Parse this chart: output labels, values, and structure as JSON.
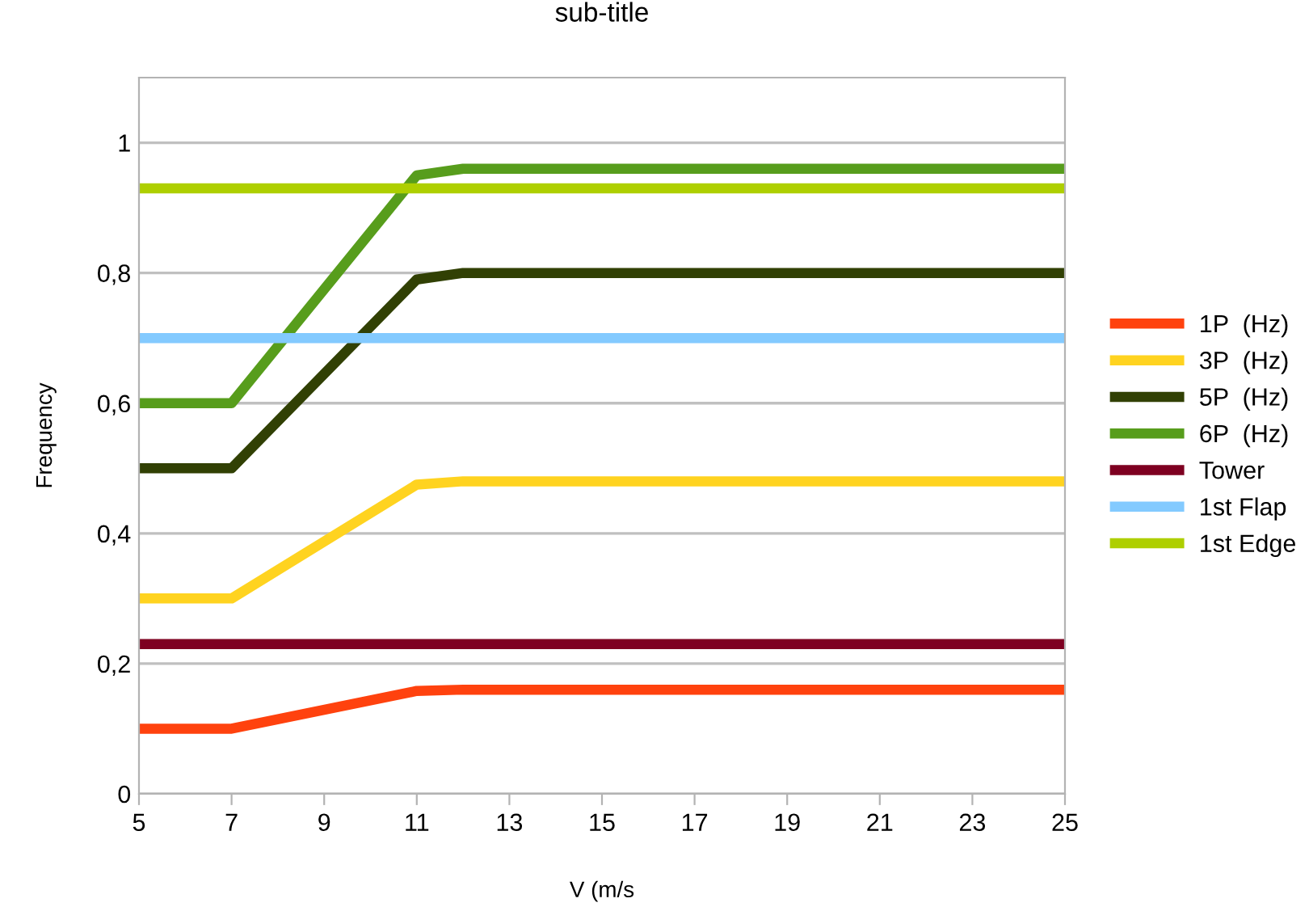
{
  "chart_data": {
    "type": "line",
    "title": "sub-title",
    "xlabel": "V (m/s",
    "ylabel": "Frequency",
    "x": [
      5,
      7,
      11,
      12,
      25
    ],
    "series": [
      {
        "name": "1P  (Hz)",
        "color": "#ff420e",
        "values": [
          0.1,
          0.1,
          0.158,
          0.16,
          0.16
        ]
      },
      {
        "name": "3P  (Hz)",
        "color": "#ffd320",
        "values": [
          0.3,
          0.3,
          0.475,
          0.48,
          0.48
        ]
      },
      {
        "name": "5P  (Hz)",
        "color": "#314004",
        "values": [
          0.5,
          0.5,
          0.79,
          0.8,
          0.8
        ]
      },
      {
        "name": "6P  (Hz)",
        "color": "#579d1c",
        "values": [
          0.6,
          0.6,
          0.95,
          0.96,
          0.96
        ]
      },
      {
        "name": "Tower",
        "color": "#7e0021",
        "values": [
          0.23,
          0.23,
          0.23,
          0.23,
          0.23
        ]
      },
      {
        "name": "1st Flap",
        "color": "#83caff",
        "values": [
          0.7,
          0.7,
          0.7,
          0.7,
          0.7
        ]
      },
      {
        "name": "1st Edge",
        "color": "#aecf00",
        "values": [
          0.93,
          0.93,
          0.93,
          0.93,
          0.93
        ]
      }
    ],
    "xlim": [
      5,
      25
    ],
    "xticks": [
      5,
      7,
      9,
      11,
      13,
      15,
      17,
      19,
      21,
      23,
      25
    ],
    "ylim": [
      0,
      1.1
    ],
    "yticks": [
      0,
      {
        "value": 0.2,
        "label": "0,2"
      },
      {
        "value": 0.4,
        "label": "0,4"
      },
      {
        "value": 0.6,
        "label": "0,6"
      },
      {
        "value": 0.8,
        "label": "0,8"
      },
      1
    ],
    "grid": "y",
    "legend": "right",
    "marker": "none",
    "line_style": "solid"
  }
}
